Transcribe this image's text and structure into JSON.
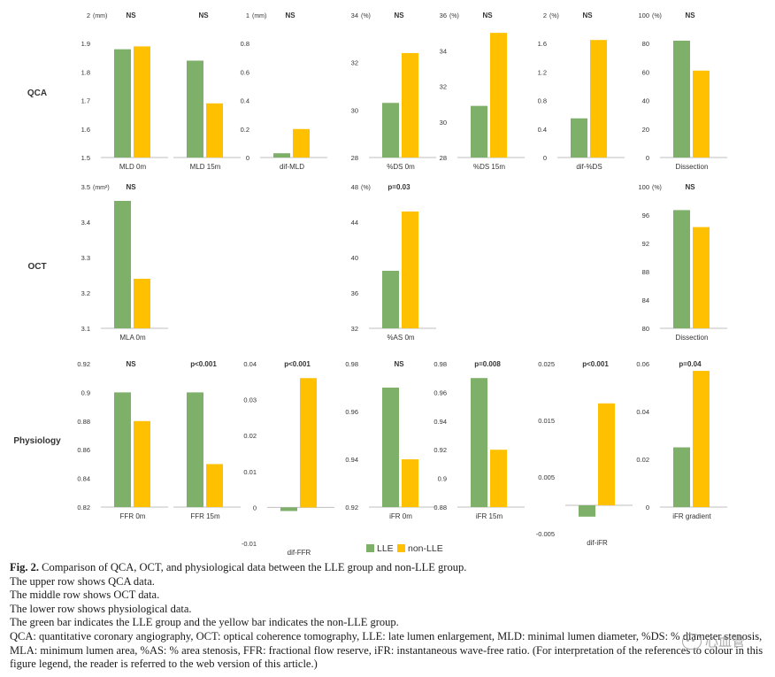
{
  "colors": {
    "lle": "#7fb069",
    "non_lle": "#ffc000",
    "axis": "#bfbfbf",
    "text": "#333333"
  },
  "rows": [
    {
      "label": "QCA"
    },
    {
      "label": "OCT"
    },
    {
      "label": "Physiology"
    }
  ],
  "legend": {
    "lle": "LLE",
    "non_lle": "non-LLE"
  },
  "chart_data": [
    {
      "id": "mld0",
      "type": "bar",
      "row": 0,
      "unit": "(mm)",
      "ylim": [
        1.5,
        2
      ],
      "ticks": [
        "1.5",
        "1.6",
        "1.7",
        "1.8",
        "1.9",
        "2"
      ],
      "values": [
        1.88,
        1.89
      ],
      "xlabel": "MLD 0m",
      "sig": "NS"
    },
    {
      "id": "mld15",
      "type": "bar",
      "row": 0,
      "ylim": [
        1.5,
        2
      ],
      "ticks": [],
      "values": [
        1.84,
        1.69
      ],
      "xlabel": "MLD 15m",
      "sig": "NS"
    },
    {
      "id": "difmld",
      "type": "bar",
      "row": 0,
      "unit": "(mm)",
      "ylim": [
        0,
        1
      ],
      "ticks": [
        "0",
        "0.2",
        "0.4",
        "0.6",
        "0.8",
        "1"
      ],
      "values": [
        0.03,
        0.2
      ],
      "xlabel": "dif-MLD",
      "sig": "NS"
    },
    {
      "id": "ds0",
      "type": "bar",
      "row": 0,
      "unit": "(%)",
      "ylim": [
        28,
        34
      ],
      "ticks": [
        "28",
        "30",
        "32",
        "34"
      ],
      "values": [
        30.3,
        32.4
      ],
      "xlabel": "%DS 0m",
      "sig": "NS"
    },
    {
      "id": "ds15",
      "type": "bar",
      "row": 0,
      "unit": "(%)",
      "ylim": [
        28,
        36
      ],
      "ticks": [
        "28",
        "30",
        "32",
        "34",
        "36"
      ],
      "values": [
        30.9,
        35.0
      ],
      "xlabel": "%DS 15m",
      "sig": "NS"
    },
    {
      "id": "difds",
      "type": "bar",
      "row": 0,
      "unit": "(%)",
      "ylim": [
        0,
        2
      ],
      "ticks": [
        "0",
        "0.4",
        "0.8",
        "1.2",
        "1.6",
        "2"
      ],
      "values": [
        0.55,
        1.65
      ],
      "xlabel": "dif-%DS",
      "sig": "NS"
    },
    {
      "id": "dissection_qca",
      "type": "bar",
      "row": 0,
      "unit": "(%)",
      "ylim": [
        0,
        100
      ],
      "ticks": [
        "0",
        "20",
        "40",
        "60",
        "80",
        "100"
      ],
      "values": [
        82,
        61
      ],
      "xlabel": "Dissection",
      "sig": "NS"
    },
    {
      "id": "mla0",
      "type": "bar",
      "row": 1,
      "unit": "(mm²)",
      "ylim": [
        3.1,
        3.5
      ],
      "ticks": [
        "3.1",
        "3.2",
        "3.3",
        "3.4",
        "3.5"
      ],
      "values": [
        3.46,
        3.24
      ],
      "xlabel": "MLA 0m",
      "sig": "NS"
    },
    {
      "id": "as0",
      "type": "bar",
      "row": 1,
      "unit": "(%)",
      "ylim": [
        32,
        48
      ],
      "ticks": [
        "32",
        "36",
        "40",
        "44",
        "48"
      ],
      "values": [
        38.5,
        45.2
      ],
      "xlabel": "%AS 0m",
      "sig": "p=0.03"
    },
    {
      "id": "dissection_oct",
      "type": "bar",
      "row": 1,
      "unit": "(%)",
      "ylim": [
        80,
        100
      ],
      "ticks": [
        "80",
        "84",
        "88",
        "92",
        "96",
        "100"
      ],
      "values": [
        96.7,
        94.3
      ],
      "xlabel": "Dissection",
      "sig": "NS"
    },
    {
      "id": "ffr0",
      "type": "bar",
      "row": 2,
      "ylim": [
        0.82,
        0.92
      ],
      "ticks": [
        "0.82",
        "0.84",
        "0.86",
        "0.88",
        "0.9",
        "0.92"
      ],
      "values": [
        0.9,
        0.88
      ],
      "xlabel": "FFR 0m",
      "sig": "NS"
    },
    {
      "id": "ffr15",
      "type": "bar",
      "row": 2,
      "ylim": [
        0.82,
        0.92
      ],
      "ticks": [],
      "values": [
        0.9,
        0.85
      ],
      "xlabel": "FFR 15m",
      "sig": "p<0.001"
    },
    {
      "id": "difffr",
      "type": "bar",
      "row": 2,
      "ylim": [
        -0.01,
        0.04
      ],
      "ticks": [
        "-0.01",
        "0",
        "0.01",
        "0.02",
        "0.03",
        "0.04"
      ],
      "values": [
        -0.001,
        0.036
      ],
      "xlabel": "dif-FFR",
      "sig": "p<0.001"
    },
    {
      "id": "ifr0",
      "type": "bar",
      "row": 2,
      "ylim": [
        0.92,
        0.98
      ],
      "ticks": [
        "0.92",
        "0.94",
        "0.96",
        "0.98"
      ],
      "values": [
        0.97,
        0.94
      ],
      "xlabel": "iFR 0m",
      "sig": "NS"
    },
    {
      "id": "ifr15",
      "type": "bar",
      "row": 2,
      "ylim": [
        0.88,
        0.98
      ],
      "ticks": [
        "0.88",
        "0.9",
        "0.92",
        "0.94",
        "0.96",
        "0.98"
      ],
      "values": [
        0.97,
        0.92
      ],
      "xlabel": "iFR 15m",
      "sig": "p=0.008"
    },
    {
      "id": "difir",
      "type": "bar",
      "row": 2,
      "ylim": [
        -0.005,
        0.025
      ],
      "ticks": [
        "-0.005",
        "0.005",
        "0.015",
        "0.025"
      ],
      "values": [
        -0.002,
        0.018
      ],
      "xlabel": "dif-iFR",
      "sig": "p<0.001"
    },
    {
      "id": "ifrgrad",
      "type": "bar",
      "row": 2,
      "ylim": [
        0,
        0.06
      ],
      "ticks": [
        "0",
        "0.02",
        "0.04",
        "0.06"
      ],
      "values": [
        0.025,
        0.057
      ],
      "xlabel": "iFR gradient",
      "sig": "p=0.04"
    }
  ],
  "caption": {
    "fig_label": "Fig. 2.",
    "title_rest": "Comparison of QCA, OCT, and physiological data between the LLE group and non-LLE group.",
    "lines": [
      "The upper row shows QCA data.",
      "The middle row shows OCT data.",
      "The lower row shows physiological data.",
      "The green bar indicates the LLE group and the yellow bar indicates the non-LLE group."
    ],
    "abbrev": "QCA: quantitative coronary angiography, OCT: optical coherence tomography, LLE: late lumen enlargement, MLD: minimal lumen diameter, %DS: % diameter stenosis, MLA: minimum lumen area, %AS: % area stenosis, FFR: fractional flow reserve, iFR: instantaneous wave-free ratio. (For interpretation of the references to colour in this figure legend, the reader is referred to the web version of this article.)"
  },
  "watermark": "心血管"
}
